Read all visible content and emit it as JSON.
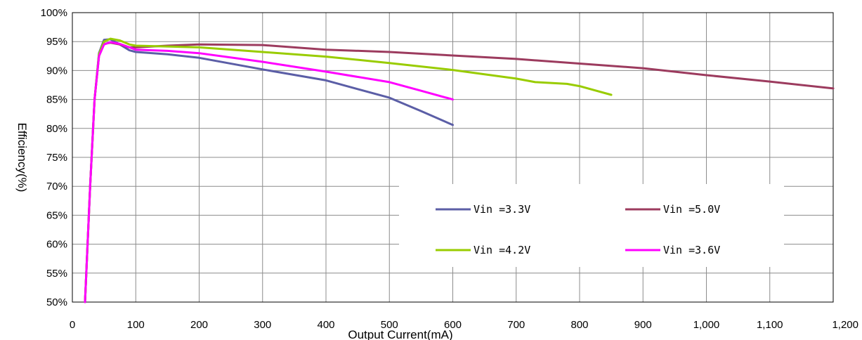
{
  "chart_data": {
    "type": "line",
    "title": "",
    "xlabel": "Output Current(mA)",
    "ylabel": "Efficiency(%)",
    "xlim": [
      0,
      1200
    ],
    "ylim": [
      50,
      100
    ],
    "x_ticks": [
      0,
      100,
      200,
      300,
      400,
      500,
      600,
      700,
      800,
      900,
      1000,
      1100,
      1200
    ],
    "x_tick_labels": [
      "0",
      "100",
      "200",
      "300",
      "400",
      "500",
      "600",
      "700",
      "800",
      "900",
      "1,000",
      "1,100",
      "1,200"
    ],
    "y_ticks": [
      50,
      55,
      60,
      65,
      70,
      75,
      80,
      85,
      90,
      95,
      100
    ],
    "y_tick_labels": [
      "50%",
      "55%",
      "60%",
      "65%",
      "70%",
      "75%",
      "80%",
      "85%",
      "90%",
      "95%",
      "100%"
    ],
    "grid": true,
    "legend_position": "bottom-right",
    "series": [
      {
        "name": "Vin =3.3V",
        "color": "#5b5ea6",
        "points": [
          [
            20,
            50
          ],
          [
            28,
            70
          ],
          [
            35,
            85
          ],
          [
            42,
            93
          ],
          [
            50,
            95.3
          ],
          [
            60,
            95.4
          ],
          [
            75,
            94.5
          ],
          [
            90,
            93.5
          ],
          [
            100,
            93.2
          ],
          [
            150,
            92.8
          ],
          [
            200,
            92.2
          ],
          [
            300,
            90.2
          ],
          [
            400,
            88.3
          ],
          [
            450,
            86.8
          ],
          [
            500,
            85.3
          ],
          [
            550,
            83
          ],
          [
            600,
            80.6
          ]
        ]
      },
      {
        "name": "Vin =5.0V",
        "color": "#9c3b5e",
        "points": [
          [
            20,
            50
          ],
          [
            28,
            70
          ],
          [
            35,
            85
          ],
          [
            42,
            92.5
          ],
          [
            50,
            94.6
          ],
          [
            60,
            94.8
          ],
          [
            75,
            94.5
          ],
          [
            90,
            94
          ],
          [
            100,
            94
          ],
          [
            150,
            94.3
          ],
          [
            200,
            94.5
          ],
          [
            300,
            94.4
          ],
          [
            400,
            93.6
          ],
          [
            500,
            93.2
          ],
          [
            600,
            92.6
          ],
          [
            700,
            92
          ],
          [
            800,
            91.2
          ],
          [
            900,
            90.4
          ],
          [
            1000,
            89.2
          ],
          [
            1100,
            88.1
          ],
          [
            1200,
            86.9
          ]
        ]
      },
      {
        "name": "Vin =4.2V",
        "color": "#99cc00",
        "points": [
          [
            20,
            50
          ],
          [
            28,
            70
          ],
          [
            35,
            85
          ],
          [
            42,
            92.8
          ],
          [
            50,
            95
          ],
          [
            60,
            95.5
          ],
          [
            75,
            95.2
          ],
          [
            90,
            94.5
          ],
          [
            100,
            94.3
          ],
          [
            200,
            94
          ],
          [
            300,
            93.2
          ],
          [
            400,
            92.4
          ],
          [
            500,
            91.3
          ],
          [
            600,
            90.1
          ],
          [
            700,
            88.6
          ],
          [
            730,
            88
          ],
          [
            780,
            87.7
          ],
          [
            800,
            87.3
          ],
          [
            850,
            85.8
          ]
        ]
      },
      {
        "name": "Vin =3.6V",
        "color": "#ff00ff",
        "points": [
          [
            20,
            50
          ],
          [
            28,
            70
          ],
          [
            35,
            85
          ],
          [
            42,
            92.5
          ],
          [
            50,
            94.5
          ],
          [
            60,
            94.9
          ],
          [
            75,
            94.6
          ],
          [
            90,
            94
          ],
          [
            100,
            93.6
          ],
          [
            150,
            93.4
          ],
          [
            200,
            93
          ],
          [
            300,
            91.5
          ],
          [
            400,
            89.8
          ],
          [
            500,
            88
          ],
          [
            550,
            86.5
          ],
          [
            600,
            85
          ]
        ]
      }
    ]
  }
}
